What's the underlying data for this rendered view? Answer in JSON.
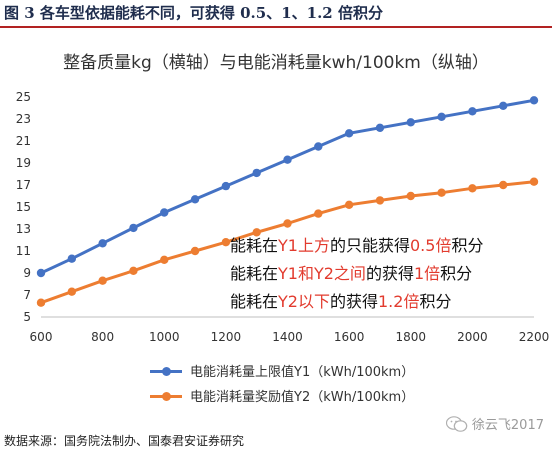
{
  "figure_title": "图 3 各车型依据能耗不同，可获得 0.5、1、1.2 倍积分",
  "chart_data": {
    "type": "line",
    "title": "整备质量kg（横轴）与电能消耗量kwh/100km（纵轴）",
    "x": [
      600,
      700,
      800,
      900,
      1000,
      1100,
      1200,
      1300,
      1400,
      1500,
      1600,
      1700,
      1800,
      1900,
      2000,
      2100,
      2200
    ],
    "xlim": [
      600,
      2200
    ],
    "ylim": [
      5,
      25
    ],
    "xticks": [
      "600",
      "800",
      "1000",
      "1200",
      "1400",
      "1600",
      "1800",
      "2000",
      "2200"
    ],
    "yticks": [
      "5",
      "7",
      "9",
      "11",
      "13",
      "15",
      "17",
      "19",
      "21",
      "23",
      "25"
    ],
    "grid": false,
    "legend_position": "bottom",
    "series": [
      {
        "name": "电能消耗量上限值Y1（kWh/100km）",
        "color": "#4472c4",
        "values": [
          9.0,
          10.3,
          11.7,
          13.1,
          14.5,
          15.7,
          16.9,
          18.1,
          19.3,
          20.5,
          21.7,
          22.2,
          22.7,
          23.2,
          23.7,
          24.2,
          24.7
        ]
      },
      {
        "name": "电能消耗量奖励值Y2（kWh/100km）",
        "color": "#ed7d31",
        "values": [
          6.3,
          7.3,
          8.3,
          9.2,
          10.2,
          11.0,
          11.8,
          12.7,
          13.5,
          14.4,
          15.2,
          15.6,
          16.0,
          16.3,
          16.7,
          17.0,
          17.3
        ]
      }
    ],
    "annotations": [
      {
        "pre": "能耗在",
        "hl1": "Y1上方",
        "mid": "的只能获得",
        "hl2": "0.5倍",
        "post": "积分"
      },
      {
        "pre": "能耗在",
        "hl1": "Y1和Y2之间",
        "mid": "的获得",
        "hl2": "1倍",
        "post": "积分"
      },
      {
        "pre": "能耗在",
        "hl1": "Y2以下",
        "mid": "的获得",
        "hl2": "1.2倍",
        "post": "积分"
      }
    ]
  },
  "source": "数据来源：国务院法制办、国泰君安证券研究",
  "watermark": "徐云飞2017"
}
